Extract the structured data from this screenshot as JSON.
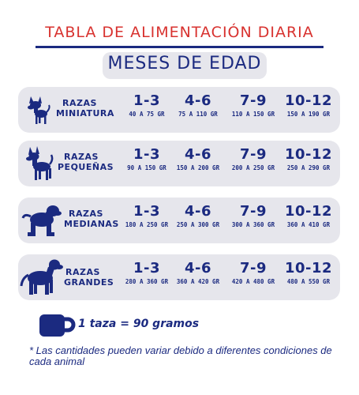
{
  "title": "TABLA DE ALIMENTACIÓN DIARIA",
  "subtitle": "MESES DE EDAD",
  "colors": {
    "title_red": "#d8322f",
    "navy": "#1b2a80",
    "panel_gray": "#e6e6ec"
  },
  "rows": [
    {
      "label_line1": "RAZAS",
      "label_line2": "MINIATURA",
      "icon": "chihuahua-icon",
      "cells": [
        {
          "months": "1-3",
          "grams": "40 A 75 GR"
        },
        {
          "months": "4-6",
          "grams": "75 A 110 GR"
        },
        {
          "months": "7-9",
          "grams": "110 A 150 GR"
        },
        {
          "months": "10-12",
          "grams": "150 A 190 GR"
        }
      ]
    },
    {
      "label_line1": "RAZAS",
      "label_line2": "PEQUEÑAS",
      "icon": "small-dog-icon",
      "cells": [
        {
          "months": "1-3",
          "grams": "90 A 150 GR"
        },
        {
          "months": "4-6",
          "grams": "150 A 200 GR"
        },
        {
          "months": "7-9",
          "grams": "200 A 250 GR"
        },
        {
          "months": "10-12",
          "grams": "250 A 290 GR"
        }
      ]
    },
    {
      "label_line1": "RAZAS",
      "label_line2": "MEDIANAS",
      "icon": "spaniel-icon",
      "cells": [
        {
          "months": "1-3",
          "grams": "180 A 250 GR"
        },
        {
          "months": "4-6",
          "grams": "250 A 300 GR"
        },
        {
          "months": "7-9",
          "grams": "300 A 360 GR"
        },
        {
          "months": "10-12",
          "grams": "360 A 410 GR"
        }
      ]
    },
    {
      "label_line1": "RAZAS",
      "label_line2": "GRANDES",
      "icon": "large-dog-icon",
      "cells": [
        {
          "months": "1-3",
          "grams": "280 A 360 GR"
        },
        {
          "months": "4-6",
          "grams": "360 A 420 GR"
        },
        {
          "months": "7-9",
          "grams": "420 A 480 GR"
        },
        {
          "months": "10-12",
          "grams": "480 A 550 GR"
        }
      ]
    }
  ],
  "cup_text": "1 taza = 90 gramos",
  "cup_icon": "cup-icon",
  "note": "* Las cantidades pueden variar debido a diferentes condiciones de cada animal"
}
